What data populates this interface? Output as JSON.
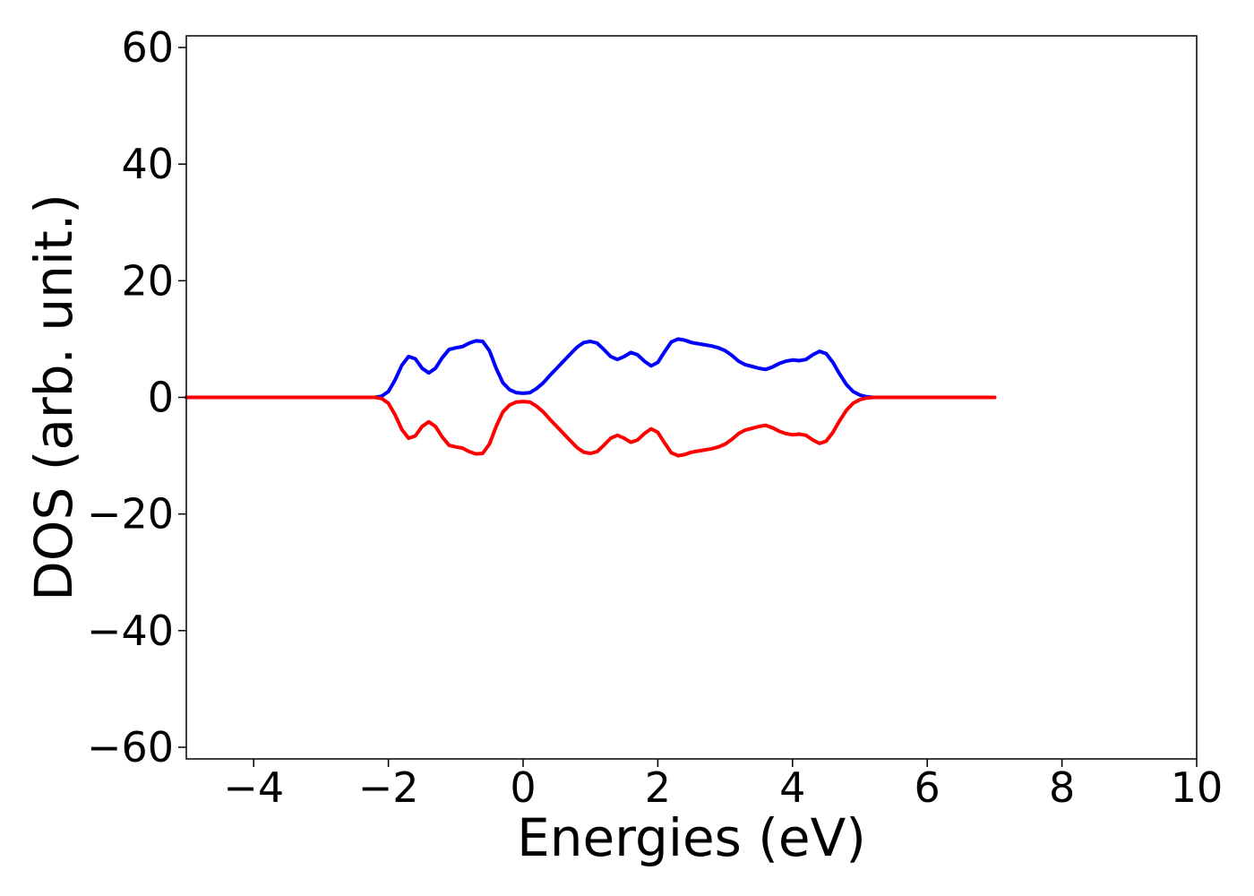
{
  "chart_data": {
    "type": "line",
    "title": "",
    "xlabel": "Energies (eV)",
    "ylabel": "DOS (arb. unit.)",
    "xlim": [
      -5,
      10
    ],
    "ylim": [
      -62,
      62
    ],
    "xticks": [
      -4,
      -2,
      0,
      2,
      4,
      6,
      8,
      10
    ],
    "xtick_labels": [
      "−4",
      "−2",
      "0",
      "2",
      "4",
      "6",
      "8",
      "10"
    ],
    "yticks": [
      -60,
      -40,
      -20,
      0,
      20,
      40,
      60
    ],
    "ytick_labels": [
      "−60",
      "−40",
      "−20",
      "0",
      "20",
      "40",
      "60"
    ],
    "grid": false,
    "legend": "none",
    "series": [
      {
        "color": "#0000ff",
        "x": [
          -5.0,
          -2.4,
          -2.2,
          -2.1,
          -2.0,
          -1.9,
          -1.8,
          -1.7,
          -1.6,
          -1.5,
          -1.4,
          -1.3,
          -1.2,
          -1.1,
          -1.0,
          -0.9,
          -0.8,
          -0.7,
          -0.6,
          -0.5,
          -0.4,
          -0.3,
          -0.2,
          -0.1,
          0.0,
          0.1,
          0.2,
          0.3,
          0.4,
          0.5,
          0.6,
          0.7,
          0.8,
          0.9,
          1.0,
          1.1,
          1.2,
          1.3,
          1.4,
          1.5,
          1.6,
          1.7,
          1.8,
          1.9,
          2.0,
          2.1,
          2.2,
          2.3,
          2.4,
          2.5,
          2.6,
          2.7,
          2.8,
          2.9,
          3.0,
          3.1,
          3.2,
          3.3,
          3.4,
          3.5,
          3.6,
          3.7,
          3.8,
          3.9,
          4.0,
          4.1,
          4.2,
          4.3,
          4.4,
          4.5,
          4.6,
          4.7,
          4.8,
          4.9,
          5.0,
          5.1,
          5.2,
          5.4,
          7.0
        ],
        "y": [
          0.0,
          0.0,
          0.0,
          0.2,
          1.0,
          3.0,
          5.5,
          7.0,
          6.6,
          5.0,
          4.2,
          5.0,
          6.8,
          8.2,
          8.5,
          8.7,
          9.3,
          9.7,
          9.6,
          8.0,
          5.0,
          2.5,
          1.3,
          0.8,
          0.7,
          0.8,
          1.5,
          2.5,
          3.8,
          5.0,
          6.2,
          7.4,
          8.6,
          9.4,
          9.6,
          9.3,
          8.2,
          7.0,
          6.5,
          7.0,
          7.7,
          7.3,
          6.2,
          5.4,
          6.0,
          7.8,
          9.5,
          10.0,
          9.8,
          9.4,
          9.2,
          9.0,
          8.8,
          8.5,
          8.0,
          7.2,
          6.2,
          5.6,
          5.3,
          5.0,
          4.8,
          5.2,
          5.8,
          6.2,
          6.4,
          6.3,
          6.5,
          7.3,
          7.9,
          7.5,
          6.0,
          4.0,
          2.2,
          1.0,
          0.4,
          0.1,
          0.0,
          0.0,
          0.0
        ]
      },
      {
        "color": "#ff0000",
        "x": [
          -5.0,
          -2.4,
          -2.2,
          -2.1,
          -2.0,
          -1.9,
          -1.8,
          -1.7,
          -1.6,
          -1.5,
          -1.4,
          -1.3,
          -1.2,
          -1.1,
          -1.0,
          -0.9,
          -0.8,
          -0.7,
          -0.6,
          -0.5,
          -0.4,
          -0.3,
          -0.2,
          -0.1,
          0.0,
          0.1,
          0.2,
          0.3,
          0.4,
          0.5,
          0.6,
          0.7,
          0.8,
          0.9,
          1.0,
          1.1,
          1.2,
          1.3,
          1.4,
          1.5,
          1.6,
          1.7,
          1.8,
          1.9,
          2.0,
          2.1,
          2.2,
          2.3,
          2.4,
          2.5,
          2.6,
          2.7,
          2.8,
          2.9,
          3.0,
          3.1,
          3.2,
          3.3,
          3.4,
          3.5,
          3.6,
          3.7,
          3.8,
          3.9,
          4.0,
          4.1,
          4.2,
          4.3,
          4.4,
          4.5,
          4.6,
          4.7,
          4.8,
          4.9,
          5.0,
          5.1,
          5.2,
          5.4,
          7.0
        ],
        "y": [
          0.0,
          0.0,
          0.0,
          -0.2,
          -1.0,
          -3.0,
          -5.5,
          -7.0,
          -6.6,
          -5.0,
          -4.2,
          -5.0,
          -6.8,
          -8.2,
          -8.5,
          -8.7,
          -9.3,
          -9.7,
          -9.6,
          -8.0,
          -5.0,
          -2.5,
          -1.3,
          -0.8,
          -0.7,
          -0.8,
          -1.5,
          -2.5,
          -3.8,
          -5.0,
          -6.2,
          -7.4,
          -8.6,
          -9.4,
          -9.6,
          -9.3,
          -8.2,
          -7.0,
          -6.5,
          -7.0,
          -7.7,
          -7.3,
          -6.2,
          -5.4,
          -6.0,
          -7.8,
          -9.5,
          -10.0,
          -9.8,
          -9.4,
          -9.2,
          -9.0,
          -8.8,
          -8.5,
          -8.0,
          -7.2,
          -6.2,
          -5.6,
          -5.3,
          -5.0,
          -4.8,
          -5.2,
          -5.8,
          -6.2,
          -6.4,
          -6.3,
          -6.5,
          -7.3,
          -7.9,
          -7.5,
          -6.0,
          -4.0,
          -2.2,
          -1.0,
          -0.4,
          -0.1,
          0.0,
          0.0,
          0.0
        ]
      }
    ]
  }
}
